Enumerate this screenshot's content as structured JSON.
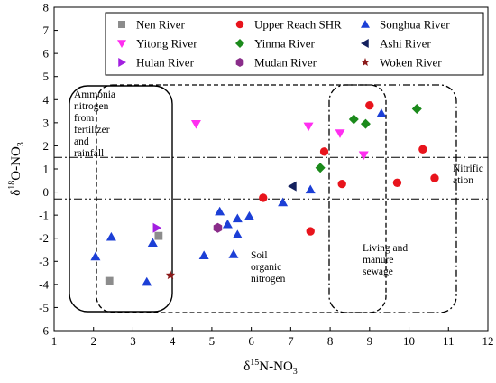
{
  "chart_data": {
    "type": "scatter",
    "xlabel_main": "δ",
    "xlabel_sup": "15",
    "xlabel_rest": "N-NO",
    "xlabel_sub": "3",
    "ylabel_main": "δ",
    "ylabel_sup": "18",
    "ylabel_rest": "O-NO",
    "ylabel_sub": "3",
    "xlim": [
      1,
      12
    ],
    "ylim": [
      -6,
      8
    ],
    "xticks": [
      1,
      2,
      3,
      4,
      5,
      6,
      7,
      8,
      9,
      10,
      11,
      12
    ],
    "yticks": [
      -6,
      -5,
      -4,
      -3,
      -2,
      -1,
      0,
      1,
      2,
      3,
      4,
      5,
      6,
      7,
      8
    ],
    "legend_position": "top-right",
    "series": [
      {
        "name": "Nen River",
        "marker": "square",
        "color": "#8c8c8c",
        "points": [
          [
            2.4,
            -3.85
          ],
          [
            3.65,
            -1.9
          ]
        ]
      },
      {
        "name": "Upper Reach SHR",
        "marker": "circle",
        "color": "#e8141c",
        "points": [
          [
            6.3,
            -0.25
          ],
          [
            7.5,
            -1.7
          ],
          [
            7.85,
            1.75
          ],
          [
            8.3,
            0.35
          ],
          [
            9.0,
            3.75
          ],
          [
            9.7,
            0.4
          ],
          [
            10.35,
            1.85
          ],
          [
            10.65,
            0.6
          ]
        ]
      },
      {
        "name": "Songhua River",
        "marker": "triangle-up",
        "color": "#1c3fd6",
        "points": [
          [
            2.05,
            -2.8
          ],
          [
            2.45,
            -1.95
          ],
          [
            3.35,
            -3.9
          ],
          [
            3.5,
            -2.2
          ],
          [
            4.8,
            -2.75
          ],
          [
            5.2,
            -0.85
          ],
          [
            5.4,
            -1.4
          ],
          [
            5.55,
            -2.7
          ],
          [
            5.65,
            -1.15
          ],
          [
            5.65,
            -1.85
          ],
          [
            5.95,
            -1.05
          ],
          [
            6.8,
            -0.45
          ],
          [
            7.5,
            0.1
          ],
          [
            9.3,
            3.4
          ]
        ]
      },
      {
        "name": "Yitong River",
        "marker": "triangle-down",
        "color": "#ff2ef0",
        "points": [
          [
            4.6,
            2.95
          ],
          [
            7.45,
            2.85
          ],
          [
            8.25,
            2.55
          ],
          [
            8.85,
            1.6
          ]
        ]
      },
      {
        "name": "Yinma River",
        "marker": "diamond",
        "color": "#1b8a1b",
        "points": [
          [
            7.75,
            1.05
          ],
          [
            8.6,
            3.15
          ],
          [
            8.9,
            2.95
          ],
          [
            10.2,
            3.6
          ]
        ]
      },
      {
        "name": "Ashi River",
        "marker": "triangle-left",
        "color": "#14215e",
        "points": [
          [
            7.05,
            0.25
          ]
        ]
      },
      {
        "name": "Hulan River",
        "marker": "triangle-right",
        "color": "#a21fe0",
        "points": [
          [
            3.6,
            -1.55
          ]
        ]
      },
      {
        "name": "Mudan River",
        "marker": "hexagon",
        "color": "#8a2d8a",
        "points": [
          [
            5.15,
            -1.55
          ]
        ]
      },
      {
        "name": "Woken River",
        "marker": "star",
        "color": "#8b1a1a",
        "points": [
          [
            3.95,
            -3.6
          ]
        ]
      }
    ],
    "reference_lines": [
      1.5,
      -0.3
    ],
    "annotations": [
      {
        "lines": [
          "Ammonia",
          "nitrogen",
          "from",
          "fertilizer",
          "and",
          "rainfall"
        ]
      },
      {
        "lines": [
          "Soil",
          "organic",
          "nitrogen"
        ]
      },
      {
        "lines": [
          "Living and",
          "manure",
          "sewage"
        ]
      },
      {
        "lines": [
          "Nitrific",
          "ation"
        ]
      }
    ]
  }
}
